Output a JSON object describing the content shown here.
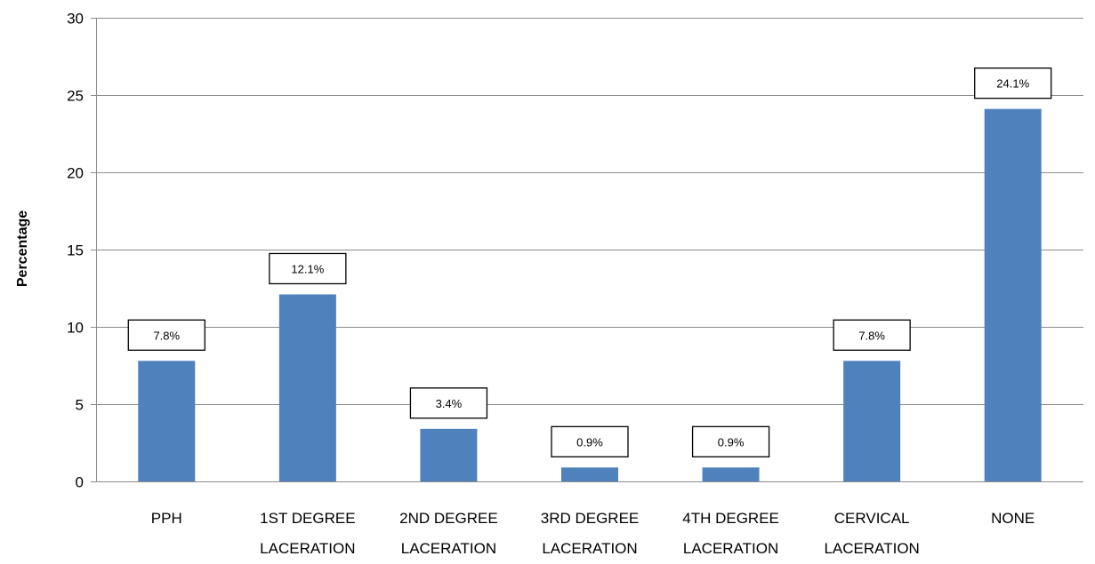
{
  "chart_data": {
    "type": "bar",
    "title": "",
    "xlabel": "",
    "ylabel": "Percentage",
    "ylim": [
      0,
      30
    ],
    "yticks": [
      0,
      5,
      10,
      15,
      20,
      25,
      30
    ],
    "grid": true,
    "legend": "none",
    "bar_color": "#4f81bd",
    "categories": [
      [
        "PPH"
      ],
      [
        "1ST DEGREE",
        "LACERATION"
      ],
      [
        "2ND DEGREE",
        "LACERATION"
      ],
      [
        "3RD DEGREE",
        "LACERATION"
      ],
      [
        "4TH DEGREE",
        "LACERATION"
      ],
      [
        "CERVICAL",
        "LACERATION"
      ],
      [
        "NONE"
      ]
    ],
    "values": [
      7.8,
      12.1,
      3.4,
      0.9,
      0.9,
      7.8,
      24.1
    ],
    "data_labels": [
      "7.8%",
      "12.1%",
      "3.4%",
      "0.9%",
      "0.9%",
      "7.8%",
      "24.1%"
    ]
  }
}
